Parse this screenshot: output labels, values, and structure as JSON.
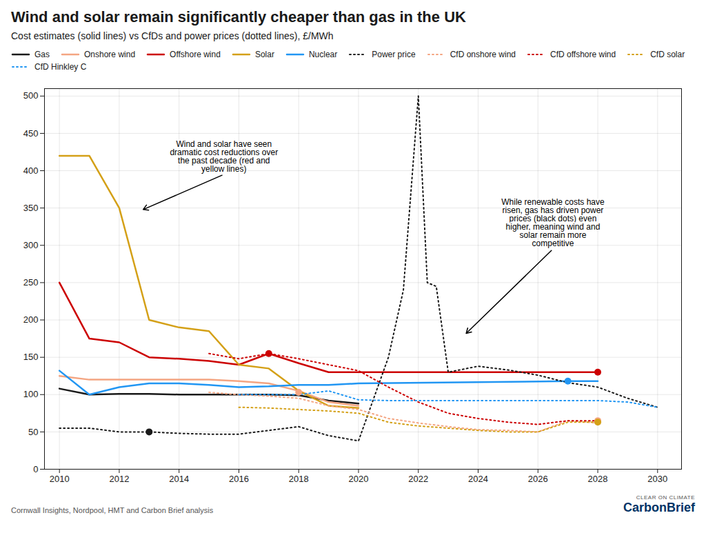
{
  "chart_data": {
    "type": "line",
    "title": "Wind and solar remain significantly cheaper than gas in the UK",
    "subtitle": "Cost estimates (solid lines) vs CfDs and power prices (dotted lines), £/MWh",
    "source": "Cornwall Insights, Nordpool, HMT and Carbon Brief analysis",
    "branding": [
      "CLEAR ON CLIMATE",
      "CarbonBrief"
    ],
    "xlim": [
      2009.5,
      2030.8
    ],
    "xticks": [
      2010,
      2012,
      2014,
      2016,
      2018,
      2020,
      2022,
      2024,
      2026,
      2028,
      2030
    ],
    "ylim": [
      0,
      510
    ],
    "yticks": [
      0,
      50,
      100,
      150,
      200,
      250,
      300,
      350,
      400,
      450,
      500
    ],
    "grid": true,
    "legend": "top",
    "series": [
      {
        "name": "Gas",
        "color": "#1a1a1a",
        "line_style": "solid",
        "x": [
          2010,
          2011,
          2012,
          2013,
          2014,
          2015,
          2016,
          2017,
          2018,
          2019,
          2020
        ],
        "values": [
          108,
          100,
          101,
          101,
          100,
          100,
          100,
          100,
          99,
          92,
          88
        ]
      },
      {
        "name": "Onshore wind",
        "color": "#f4a582",
        "line_style": "solid",
        "x": [
          2010,
          2011,
          2012,
          2013,
          2014,
          2015,
          2016,
          2017,
          2018,
          2019,
          2020
        ],
        "values": [
          125,
          120,
          120,
          120,
          120,
          120,
          118,
          115,
          105,
          90,
          85
        ]
      },
      {
        "name": "Offshore wind",
        "color": "#cc0000",
        "line_style": "solid",
        "x": [
          2010,
          2011,
          2012,
          2013,
          2014,
          2015,
          2016,
          2017,
          2018,
          2019,
          2020,
          2028
        ],
        "values": [
          250,
          175,
          170,
          150,
          148,
          145,
          140,
          155,
          142,
          130,
          130,
          130
        ]
      },
      {
        "name": "Solar",
        "color": "#d4a017",
        "line_style": "solid",
        "x": [
          2010,
          2011,
          2012,
          2013,
          2014,
          2015,
          2016,
          2017,
          2018,
          2019,
          2020
        ],
        "values": [
          420,
          420,
          350,
          200,
          190,
          185,
          140,
          135,
          105,
          85,
          82
        ]
      },
      {
        "name": "Nuclear",
        "color": "#2196f3",
        "line_style": "solid",
        "x": [
          2010,
          2011,
          2012,
          2013,
          2014,
          2015,
          2016,
          2017,
          2018,
          2019,
          2020,
          2027,
          2028
        ],
        "values": [
          132,
          100,
          110,
          115,
          115,
          113,
          110,
          111,
          113,
          113,
          115,
          118,
          118
        ]
      },
      {
        "name": "Power price",
        "color": "#1a1a1a",
        "line_style": "dotted",
        "x": [
          2010,
          2011,
          2012,
          2013,
          2014,
          2015,
          2016,
          2017,
          2018,
          2019,
          2020,
          2021,
          2021.5,
          2022,
          2022.3,
          2022.6,
          2023,
          2024,
          2025,
          2026,
          2027,
          2028,
          2029,
          2030
        ],
        "values": [
          55,
          55,
          50,
          50,
          48,
          47,
          47,
          52,
          57,
          45,
          38,
          150,
          240,
          500,
          250,
          245,
          130,
          138,
          133,
          126,
          116,
          110,
          95,
          83
        ]
      },
      {
        "name": "CfD onshore wind",
        "color": "#f4a582",
        "line_style": "dotted",
        "x": [
          2015,
          2016,
          2017,
          2018,
          2019,
          2020,
          2021,
          2022,
          2023,
          2024,
          2025,
          2026,
          2027,
          2028
        ],
        "values": [
          103,
          100,
          98,
          95,
          85,
          80,
          68,
          62,
          57,
          53,
          52,
          50,
          65,
          62
        ]
      },
      {
        "name": "CfD offshore wind",
        "color": "#cc0000",
        "line_style": "dotted",
        "x": [
          2015,
          2016,
          2017,
          2018,
          2019,
          2020,
          2021,
          2022,
          2023,
          2024,
          2025,
          2026,
          2027,
          2028
        ],
        "values": [
          155,
          148,
          155,
          148,
          140,
          132,
          110,
          90,
          75,
          68,
          63,
          60,
          65,
          65
        ]
      },
      {
        "name": "CfD solar",
        "color": "#d4a017",
        "line_style": "dotted",
        "x": [
          2016,
          2017,
          2018,
          2019,
          2020,
          2021,
          2022,
          2023,
          2024,
          2025,
          2026,
          2027,
          2028
        ],
        "values": [
          83,
          82,
          80,
          78,
          75,
          63,
          58,
          55,
          52,
          50,
          50,
          63,
          63
        ]
      },
      {
        "name": "CfD Hinkley C",
        "color": "#2196f3",
        "line_style": "dotted",
        "x": [
          2016,
          2017,
          2018,
          2019,
          2020,
          2021,
          2022,
          2023,
          2024,
          2025,
          2026,
          2027,
          2028,
          2029,
          2030
        ],
        "values": [
          100,
          100,
          100,
          105,
          93,
          92,
          92,
          92,
          92,
          92,
          92,
          92,
          92,
          90,
          83
        ]
      }
    ],
    "points": [
      {
        "x": 2013,
        "y": 50,
        "color": "#1a1a1a"
      },
      {
        "x": 2017,
        "y": 155,
        "color": "#cc0000"
      },
      {
        "x": 2018,
        "y": 103,
        "color": "#f4a582"
      },
      {
        "x": 2027,
        "y": 118,
        "color": "#2196f3"
      },
      {
        "x": 2028,
        "y": 130,
        "color": "#cc0000"
      },
      {
        "x": 2028,
        "y": 65,
        "color": "#f4a582"
      },
      {
        "x": 2028,
        "y": 63,
        "color": "#d4a017"
      }
    ],
    "annotations": [
      {
        "text": "Wind and solar have seen\ndramatic cost reductions over\nthe past decade (red and\nyellow lines)",
        "xy": [
          2012.8,
          348
        ],
        "xytext": [
          2015.5,
          395
        ]
      },
      {
        "text": "While renewable costs have\nrisen, gas has driven power\nprices (black dots) even\nhigher, meaning wind and\nsolar remain more\ncompetitive",
        "xy": [
          2023.6,
          182
        ],
        "xytext": [
          2026.5,
          295
        ]
      }
    ]
  }
}
